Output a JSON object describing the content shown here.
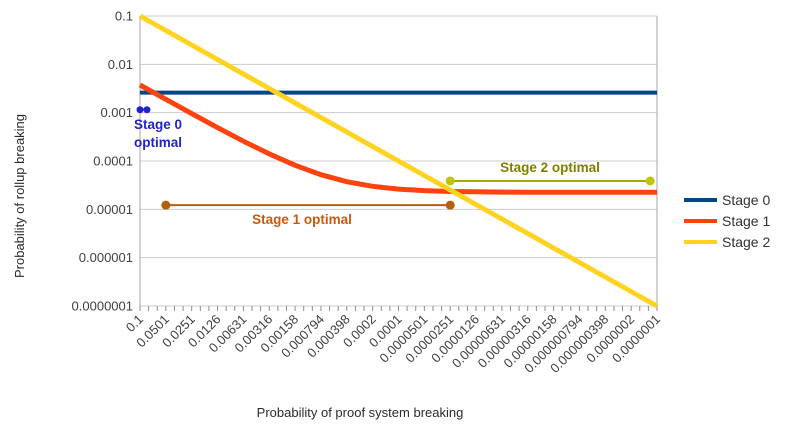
{
  "chart_data": {
    "type": "line",
    "title": "",
    "xlabel": "Probability of proof system breaking",
    "ylabel": "Probability of rollup breaking",
    "x_scale": "log",
    "y_scale": "log",
    "x_range": [
      0.1,
      1e-07
    ],
    "y_range": [
      0.1,
      1e-07
    ],
    "grid": "horizontal-only",
    "legend_position": "right",
    "x_ticks": [
      "0.1",
      "0.0501",
      "0.0251",
      "0.0126",
      "0.00631",
      "0.00316",
      "0.00158",
      "0.000794",
      "0.000398",
      "0.0002",
      "0.0001",
      "0.0000501",
      "0.0000251",
      "0.0000126",
      "0.00000631",
      "0.00000316",
      "0.00000158",
      "0.000000794",
      "0.000000398",
      "0.0000002",
      "0.0000001"
    ],
    "y_ticks": [
      "0.1",
      "0.01",
      "0.001",
      "0.0001",
      "0.00001",
      "0.000001",
      "0.0000001"
    ],
    "x": [
      0.1,
      0.0501,
      0.0251,
      0.0126,
      0.00631,
      0.00316,
      0.00158,
      0.000794,
      0.000398,
      0.0002,
      0.0001,
      5.01e-05,
      2.51e-05,
      1.26e-05,
      6.31e-06,
      3.16e-06,
      1.58e-06,
      7.94e-07,
      3.98e-07,
      2e-07,
      1e-07
    ],
    "series": [
      {
        "name": "Stage 0",
        "color": "#004586",
        "width": 4,
        "values": [
          0.0026,
          0.0026,
          0.0026,
          0.0026,
          0.0026,
          0.0026,
          0.0026,
          0.0026,
          0.0026,
          0.0026,
          0.0026,
          0.0026,
          0.0026,
          0.0026,
          0.0026,
          0.0026,
          0.0026,
          0.0026,
          0.0026,
          0.0026,
          0.0026
        ]
      },
      {
        "name": "Stage 1",
        "color": "#ff420e",
        "width": 5,
        "values": [
          0.00374,
          0.00189,
          0.000956,
          0.000491,
          0.000257,
          0.00014,
          8.13e-05,
          5.2e-05,
          3.73e-05,
          2.99e-05,
          2.62e-05,
          2.44e-05,
          2.34e-05,
          2.3e-05,
          2.27e-05,
          2.26e-05,
          2.26e-05,
          2.25e-05,
          2.25e-05,
          2.25e-05,
          2.25e-05
        ]
      },
      {
        "name": "Stage 2",
        "color": "#ffd320",
        "width": 5,
        "values": [
          0.1,
          0.0501,
          0.0251,
          0.0126,
          0.00631,
          0.00316,
          0.00158,
          0.000794,
          0.000398,
          0.0002,
          0.0001,
          5.01e-05,
          2.51e-05,
          1.26e-05,
          6.31e-06,
          3.16e-06,
          1.58e-06,
          7.94e-07,
          3.98e-07,
          2e-07,
          1e-07
        ]
      }
    ],
    "annotations": [
      {
        "id": "stage0",
        "label_lines": [
          "Stage 0",
          "optimal"
        ],
        "text_color": "#2222cc",
        "line_color": "#2222cc",
        "dot_color": "#2222cc",
        "x_start": 0.1,
        "x_end": 0.083,
        "y": 0.00115,
        "dot_r": 3.5
      },
      {
        "id": "stage1",
        "label_lines": [
          "Stage 1 optimal"
        ],
        "text_color": "#c55a11",
        "line_color": "#b45f0b",
        "dot_color": "#b45f0b",
        "x_start": 0.0501,
        "x_end": 2.51e-05,
        "y": 1.22e-05,
        "dot_r": 4.5
      },
      {
        "id": "stage2",
        "label_lines": [
          "Stage 2 optimal"
        ],
        "text_color": "#7f7f00",
        "line_color": "#a9a900",
        "dot_color": "#bcc506",
        "x_start": 2.51e-05,
        "x_end": 1.2e-07,
        "y": 3.86e-05,
        "dot_r": 4.5
      }
    ]
  }
}
